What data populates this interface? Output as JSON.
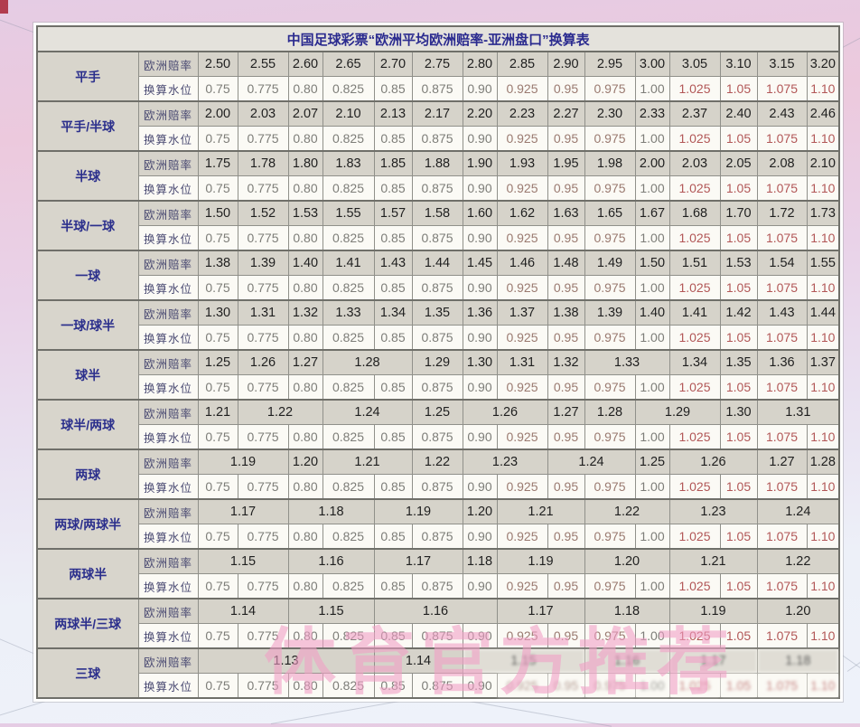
{
  "page": {
    "watermark": "体育官方推荐"
  },
  "colors": {
    "title_text": "#2b2b8f",
    "handicap_text": "#2b2f8c",
    "row_label_text": "#4a4a72",
    "odds_text": "#1f1f1f",
    "water_gray": "#7d7d78",
    "water_warm": "#9a7a70",
    "water_red": "#b25757",
    "title_row_bg": "#e4e2dc",
    "odds_row_bg": "#d6d3ca",
    "water_row_bg": "#fbfaf5",
    "handicap_bg": "#d8d5cc",
    "watermark_pink": "#f29ec6"
  },
  "chart_data": {
    "type": "table",
    "title": "中国足球彩票“欧洲平均欧洲赔率-亚洲盘口”换算表",
    "row_labels": {
      "odds": "欧洲赔率",
      "water": "换算水位"
    },
    "water_levels": [
      "0.75",
      "0.775",
      "0.80",
      "0.825",
      "0.85",
      "0.875",
      "0.90",
      "0.925",
      "0.95",
      "0.975",
      "1.00",
      "1.025",
      "1.05",
      "1.075",
      "1.10"
    ],
    "groups": [
      {
        "handicap": "平手",
        "odds": [
          {
            "v": "2.50"
          },
          {
            "v": "2.55"
          },
          {
            "v": "2.60"
          },
          {
            "v": "2.65"
          },
          {
            "v": "2.70"
          },
          {
            "v": "2.75"
          },
          {
            "v": "2.80"
          },
          {
            "v": "2.85"
          },
          {
            "v": "2.90"
          },
          {
            "v": "2.95"
          },
          {
            "v": "3.00"
          },
          {
            "v": "3.05"
          },
          {
            "v": "3.10"
          },
          {
            "v": "3.15"
          },
          {
            "v": "3.20"
          }
        ]
      },
      {
        "handicap": "平手/半球",
        "odds": [
          {
            "v": "2.00"
          },
          {
            "v": "2.03"
          },
          {
            "v": "2.07"
          },
          {
            "v": "2.10"
          },
          {
            "v": "2.13"
          },
          {
            "v": "2.17"
          },
          {
            "v": "2.20"
          },
          {
            "v": "2.23"
          },
          {
            "v": "2.27"
          },
          {
            "v": "2.30"
          },
          {
            "v": "2.33"
          },
          {
            "v": "2.37"
          },
          {
            "v": "2.40"
          },
          {
            "v": "2.43"
          },
          {
            "v": "2.46"
          }
        ]
      },
      {
        "handicap": "半球",
        "odds": [
          {
            "v": "1.75"
          },
          {
            "v": "1.78"
          },
          {
            "v": "1.80"
          },
          {
            "v": "1.83"
          },
          {
            "v": "1.85"
          },
          {
            "v": "1.88"
          },
          {
            "v": "1.90"
          },
          {
            "v": "1.93"
          },
          {
            "v": "1.95"
          },
          {
            "v": "1.98"
          },
          {
            "v": "2.00"
          },
          {
            "v": "2.03"
          },
          {
            "v": "2.05"
          },
          {
            "v": "2.08"
          },
          {
            "v": "2.10"
          }
        ]
      },
      {
        "handicap": "半球/一球",
        "odds": [
          {
            "v": "1.50"
          },
          {
            "v": "1.52"
          },
          {
            "v": "1.53"
          },
          {
            "v": "1.55"
          },
          {
            "v": "1.57"
          },
          {
            "v": "1.58"
          },
          {
            "v": "1.60"
          },
          {
            "v": "1.62"
          },
          {
            "v": "1.63"
          },
          {
            "v": "1.65"
          },
          {
            "v": "1.67"
          },
          {
            "v": "1.68"
          },
          {
            "v": "1.70"
          },
          {
            "v": "1.72"
          },
          {
            "v": "1.73"
          }
        ]
      },
      {
        "handicap": "一球",
        "odds": [
          {
            "v": "1.38"
          },
          {
            "v": "1.39"
          },
          {
            "v": "1.40"
          },
          {
            "v": "1.41"
          },
          {
            "v": "1.43"
          },
          {
            "v": "1.44"
          },
          {
            "v": "1.45"
          },
          {
            "v": "1.46"
          },
          {
            "v": "1.48"
          },
          {
            "v": "1.49"
          },
          {
            "v": "1.50"
          },
          {
            "v": "1.51"
          },
          {
            "v": "1.53"
          },
          {
            "v": "1.54"
          },
          {
            "v": "1.55"
          }
        ]
      },
      {
        "handicap": "一球/球半",
        "odds": [
          {
            "v": "1.30"
          },
          {
            "v": "1.31"
          },
          {
            "v": "1.32"
          },
          {
            "v": "1.33"
          },
          {
            "v": "1.34"
          },
          {
            "v": "1.35"
          },
          {
            "v": "1.36"
          },
          {
            "v": "1.37"
          },
          {
            "v": "1.38"
          },
          {
            "v": "1.39"
          },
          {
            "v": "1.40"
          },
          {
            "v": "1.41"
          },
          {
            "v": "1.42"
          },
          {
            "v": "1.43"
          },
          {
            "v": "1.44"
          }
        ]
      },
      {
        "handicap": "球半",
        "odds": [
          {
            "v": "1.25"
          },
          {
            "v": "1.26"
          },
          {
            "v": "1.27"
          },
          {
            "v": "1.28",
            "span": 2
          },
          {
            "v": "1.29"
          },
          {
            "v": "1.30"
          },
          {
            "v": "1.31"
          },
          {
            "v": "1.32"
          },
          {
            "v": "1.33",
            "span": 2
          },
          {
            "v": "1.34"
          },
          {
            "v": "1.35"
          },
          {
            "v": "1.36"
          },
          {
            "v": "1.37"
          }
        ]
      },
      {
        "handicap": "球半/两球",
        "odds": [
          {
            "v": "1.21"
          },
          {
            "v": "1.22",
            "span": 2
          },
          {
            "v": "1.24",
            "span": 2
          },
          {
            "v": "1.25"
          },
          {
            "v": "1.26",
            "span": 2
          },
          {
            "v": "1.27"
          },
          {
            "v": "1.28"
          },
          {
            "v": "1.29",
            "span": 2
          },
          {
            "v": "1.30"
          },
          {
            "v": "1.31",
            "span": 2
          }
        ]
      },
      {
        "handicap": "两球",
        "odds": [
          {
            "v": "1.19",
            "span": 2
          },
          {
            "v": "1.20"
          },
          {
            "v": "1.21",
            "span": 2
          },
          {
            "v": "1.22"
          },
          {
            "v": "1.23",
            "span": 2
          },
          {
            "v": "1.24",
            "span": 2
          },
          {
            "v": "1.25"
          },
          {
            "v": "1.26",
            "span": 2
          },
          {
            "v": "1.27"
          },
          {
            "v": "1.28"
          }
        ]
      },
      {
        "handicap": "两球/两球半",
        "odds": [
          {
            "v": "1.17",
            "span": 2
          },
          {
            "v": "1.18",
            "span": 2
          },
          {
            "v": "1.19",
            "span": 2
          },
          {
            "v": "1.20"
          },
          {
            "v": "1.21",
            "span": 2
          },
          {
            "v": "1.22",
            "span": 2
          },
          {
            "v": "1.23",
            "span": 2
          },
          {
            "v": "1.24",
            "span": 2
          }
        ]
      },
      {
        "handicap": "两球半",
        "odds": [
          {
            "v": "1.15",
            "span": 2
          },
          {
            "v": "1.16",
            "span": 2
          },
          {
            "v": "1.17",
            "span": 2
          },
          {
            "v": "1.18"
          },
          {
            "v": "1.19",
            "span": 2
          },
          {
            "v": "1.20",
            "span": 2
          },
          {
            "v": "1.21",
            "span": 2
          },
          {
            "v": "1.22",
            "span": 2
          }
        ]
      },
      {
        "handicap": "两球半/三球",
        "odds": [
          {
            "v": "1.14",
            "span": 2
          },
          {
            "v": "1.15",
            "span": 2
          },
          {
            "v": "1.16",
            "span": 3
          },
          {
            "v": "1.17",
            "span": 2
          },
          {
            "v": "1.18",
            "span": 2
          },
          {
            "v": "1.19",
            "span": 2
          },
          {
            "v": "1.20",
            "span": 2
          }
        ]
      },
      {
        "handicap": "三球",
        "odds": [
          {
            "v": "1.13",
            "span": 4
          },
          {
            "v": "1.14",
            "span": 2
          },
          {
            "v": "1.15",
            "span": 3
          },
          {
            "v": "1.16",
            "span": 2
          },
          {
            "v": "1.17",
            "span": 2
          },
          {
            "v": "1.18",
            "span": 2
          }
        ]
      }
    ]
  }
}
